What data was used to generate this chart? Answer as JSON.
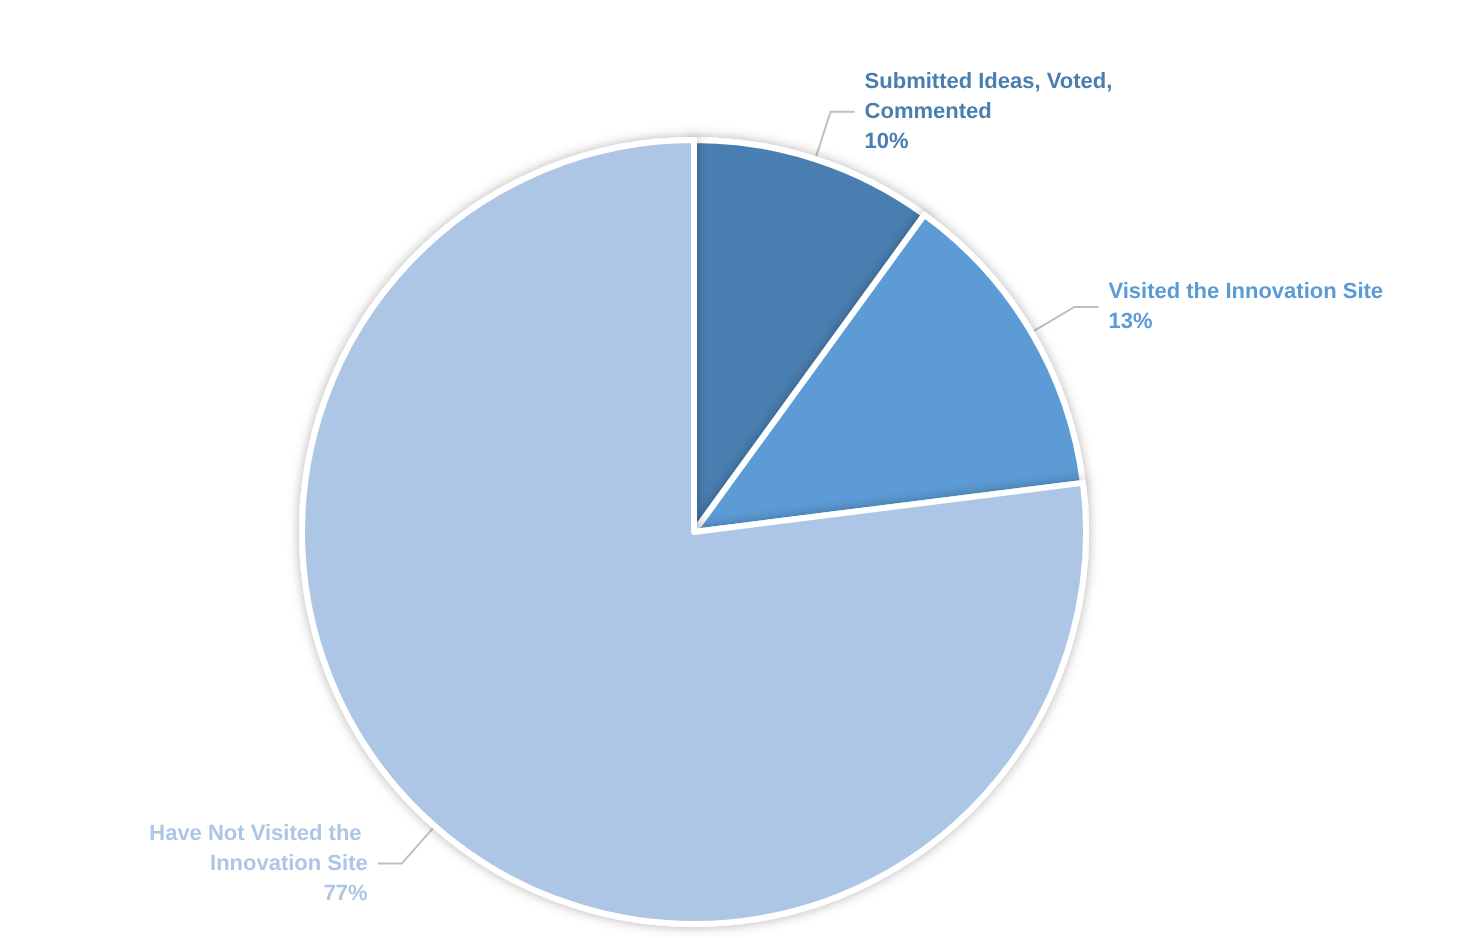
{
  "chart_data": {
    "type": "pie",
    "categories": [
      "Submitted Ideas, Voted, Commented",
      "Visited the Innovation Site",
      "Have Not Visited the Innovation Site"
    ],
    "values": [
      10,
      13,
      77
    ],
    "colors": [
      "#4a7eb0",
      "#5b9bd5",
      "#adc6e5"
    ],
    "value_labels": [
      "10%",
      "13%",
      "77%"
    ]
  }
}
